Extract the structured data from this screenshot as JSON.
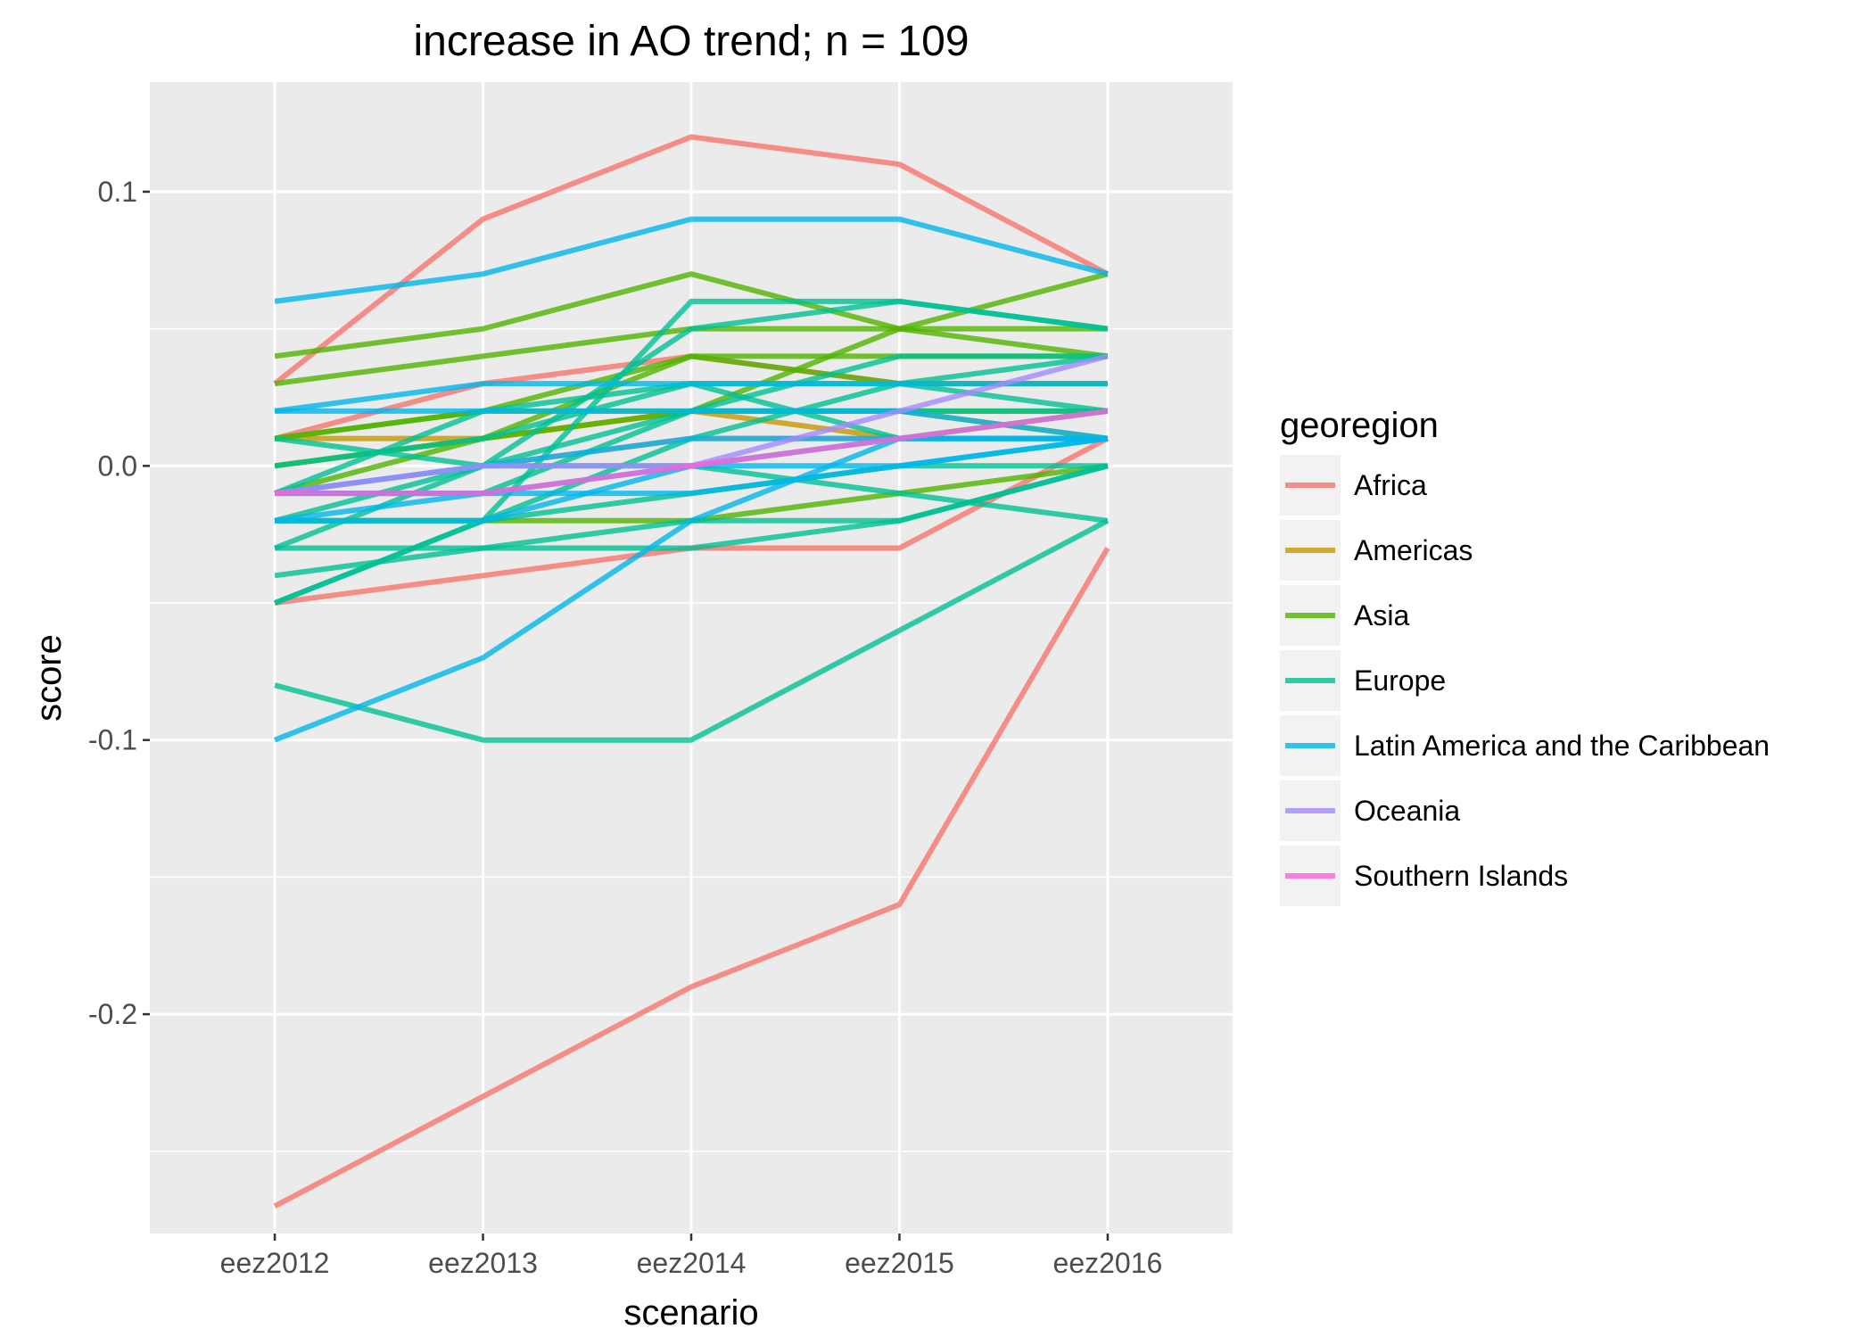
{
  "chart_data": {
    "type": "line",
    "title": "increase in AO trend; n = 109",
    "xlabel": "scenario",
    "ylabel": "score",
    "categories": [
      "eez2012",
      "eez2013",
      "eez2014",
      "eez2015",
      "eez2016"
    ],
    "ylim": [
      -0.28,
      0.14
    ],
    "yticks": [
      -0.2,
      -0.1,
      0.0,
      0.1
    ],
    "ytick_labels": [
      "-0.2",
      "-0.1",
      "0.0",
      "0.1"
    ],
    "grid": true,
    "legend": {
      "title": "georegion",
      "position": "right",
      "items": [
        {
          "label": "Africa",
          "color": "#F8766D"
        },
        {
          "label": "Americas",
          "color": "#C49A00"
        },
        {
          "label": "Asia",
          "color": "#53B400"
        },
        {
          "label": "Europe",
          "color": "#00C094"
        },
        {
          "label": "Latin America and the Caribbean",
          "color": "#00B6EB"
        },
        {
          "label": "Oceania",
          "color": "#A58AFF"
        },
        {
          "label": "Southern Islands",
          "color": "#FB61D7"
        }
      ]
    },
    "series": [
      {
        "group": "Africa",
        "values": [
          -0.27,
          -0.23,
          -0.19,
          -0.16,
          -0.03
        ]
      },
      {
        "group": "Africa",
        "values": [
          0.03,
          0.09,
          0.12,
          0.11,
          0.07
        ]
      },
      {
        "group": "Africa",
        "values": [
          -0.05,
          -0.04,
          -0.03,
          -0.03,
          0.01
        ]
      },
      {
        "group": "Africa",
        "values": [
          0.01,
          0.03,
          0.04,
          0.03,
          0.03
        ]
      },
      {
        "group": "Africa",
        "values": [
          -0.01,
          0.0,
          0.01,
          0.01,
          0.01
        ]
      },
      {
        "group": "Americas",
        "values": [
          0.0,
          0.01,
          0.02,
          0.02,
          0.01
        ]
      },
      {
        "group": "Americas",
        "values": [
          0.01,
          0.01,
          0.02,
          0.01,
          0.01
        ]
      },
      {
        "group": "Asia",
        "values": [
          0.04,
          0.05,
          0.07,
          0.05,
          0.04
        ]
      },
      {
        "group": "Asia",
        "values": [
          0.03,
          0.04,
          0.05,
          0.05,
          0.05
        ]
      },
      {
        "group": "Asia",
        "values": [
          0.01,
          0.02,
          0.02,
          0.02,
          0.02
        ]
      },
      {
        "group": "Asia",
        "values": [
          -0.02,
          -0.02,
          -0.02,
          -0.01,
          0.0
        ]
      },
      {
        "group": "Asia",
        "values": [
          -0.01,
          0.01,
          0.04,
          0.03,
          0.03
        ]
      },
      {
        "group": "Asia",
        "values": [
          0.0,
          0.01,
          0.02,
          0.05,
          0.07
        ]
      },
      {
        "group": "Asia",
        "values": [
          0.01,
          0.02,
          0.04,
          0.04,
          0.04
        ]
      },
      {
        "group": "Europe",
        "values": [
          -0.08,
          -0.1,
          -0.1,
          -0.06,
          -0.02
        ]
      },
      {
        "group": "Europe",
        "values": [
          -0.05,
          -0.02,
          0.06,
          0.06,
          0.05
        ]
      },
      {
        "group": "Europe",
        "values": [
          -0.04,
          -0.03,
          -0.03,
          -0.02,
          0.0
        ]
      },
      {
        "group": "Europe",
        "values": [
          -0.03,
          -0.03,
          -0.02,
          -0.02,
          0.0
        ]
      },
      {
        "group": "Europe",
        "values": [
          -0.03,
          0.0,
          0.05,
          0.06,
          0.05
        ]
      },
      {
        "group": "Europe",
        "values": [
          -0.02,
          -0.02,
          0.01,
          0.03,
          0.04
        ]
      },
      {
        "group": "Europe",
        "values": [
          -0.01,
          0.02,
          0.03,
          0.01,
          0.02
        ]
      },
      {
        "group": "Europe",
        "values": [
          0.0,
          0.01,
          0.03,
          0.03,
          0.02
        ]
      },
      {
        "group": "Europe",
        "values": [
          0.01,
          0.0,
          0.0,
          -0.01,
          -0.02
        ]
      },
      {
        "group": "Europe",
        "values": [
          -0.01,
          -0.01,
          0.02,
          0.04,
          0.04
        ]
      },
      {
        "group": "Europe",
        "values": [
          -0.05,
          -0.02,
          -0.01,
          0.0,
          0.0
        ]
      },
      {
        "group": "Europe",
        "values": [
          -0.02,
          0.0,
          0.02,
          0.02,
          0.02
        ]
      },
      {
        "group": "Latin America and the Caribbean",
        "values": [
          0.06,
          0.07,
          0.09,
          0.09,
          0.07
        ]
      },
      {
        "group": "Latin America and the Caribbean",
        "values": [
          -0.1,
          -0.07,
          -0.02,
          0.01,
          0.01
        ]
      },
      {
        "group": "Latin America and the Caribbean",
        "values": [
          0.02,
          0.03,
          0.03,
          0.03,
          0.03
        ]
      },
      {
        "group": "Latin America and the Caribbean",
        "values": [
          0.02,
          0.02,
          0.02,
          0.02,
          0.01
        ]
      },
      {
        "group": "Latin America and the Caribbean",
        "values": [
          -0.01,
          -0.01,
          0.0,
          0.01,
          0.01
        ]
      },
      {
        "group": "Latin America and the Caribbean",
        "values": [
          -0.02,
          -0.01,
          -0.01,
          0.0,
          0.01
        ]
      },
      {
        "group": "Latin America and the Caribbean",
        "values": [
          -0.02,
          -0.02,
          0.0,
          0.0,
          0.01
        ]
      },
      {
        "group": "Latin America and the Caribbean",
        "values": [
          -0.01,
          0.0,
          0.01,
          0.01,
          0.01
        ]
      },
      {
        "group": "Oceania",
        "values": [
          -0.01,
          0.0,
          0.0,
          0.02,
          0.04
        ]
      },
      {
        "group": "Southern Islands",
        "values": [
          -0.01,
          -0.01,
          0.0,
          0.01,
          0.02
        ]
      }
    ]
  }
}
